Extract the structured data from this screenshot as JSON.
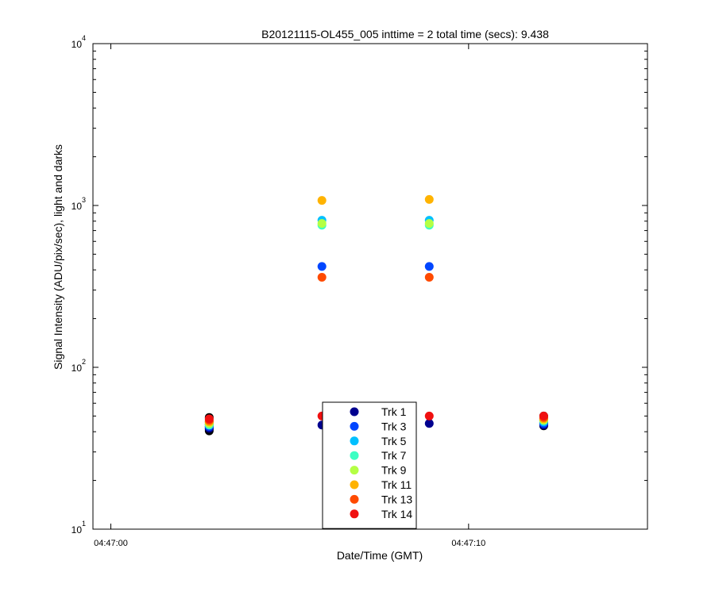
{
  "chart_data": {
    "type": "scatter",
    "title": "B20121115-OL455_005 inttime = 2 total time (secs): 9.438",
    "xlabel": "Date/Time (GMT)",
    "ylabel": "Signal Intensity (ADU/pix/sec), light and darks",
    "y_scale": "log",
    "ylim": [
      10,
      10000
    ],
    "xlim": [
      "04:46:59.5",
      "04:47:15"
    ],
    "x_ticks": [
      {
        "value": "04:47:00",
        "label": "04:47:00"
      },
      {
        "value": "04:47:10",
        "label": "04:47:10"
      }
    ],
    "y_ticks": [
      {
        "value": 10,
        "base": "10",
        "exp": "1"
      },
      {
        "value": 100,
        "base": "10",
        "exp": "2"
      },
      {
        "value": 1000,
        "base": "10",
        "exp": "3"
      },
      {
        "value": 10000,
        "base": "10",
        "exp": "4"
      }
    ],
    "grid": false,
    "legend_position": "bottom-center",
    "series": [
      {
        "name": "Trk 1",
        "color": "#00008f",
        "points": [
          {
            "x": "04:47:02.75",
            "y": 42
          },
          {
            "x": "04:47:05.9",
            "y": 44
          },
          {
            "x": "04:47:08.9",
            "y": 45
          },
          {
            "x": "04:47:12.1",
            "y": 44
          }
        ]
      },
      {
        "name": "Trk 3",
        "color": "#0046ff",
        "points": [
          {
            "x": "04:47:02.75",
            "y": 43
          },
          {
            "x": "04:47:05.9",
            "y": 420
          },
          {
            "x": "04:47:08.9",
            "y": 420
          },
          {
            "x": "04:47:12.1",
            "y": 45
          }
        ]
      },
      {
        "name": "Trk 5",
        "color": "#00c0ff",
        "points": [
          {
            "x": "04:47:02.75",
            "y": 44
          },
          {
            "x": "04:47:05.9",
            "y": 810
          },
          {
            "x": "04:47:08.9",
            "y": 810
          },
          {
            "x": "04:47:12.1",
            "y": 46
          }
        ]
      },
      {
        "name": "Trk 7",
        "color": "#3cffc3",
        "points": [
          {
            "x": "04:47:02.75",
            "y": 44
          },
          {
            "x": "04:47:05.9",
            "y": 755
          },
          {
            "x": "04:47:08.9",
            "y": 755
          },
          {
            "x": "04:47:12.1",
            "y": 47
          }
        ]
      },
      {
        "name": "Trk 9",
        "color": "#b4ff44",
        "points": [
          {
            "x": "04:47:02.75",
            "y": 45
          },
          {
            "x": "04:47:05.9",
            "y": 775
          },
          {
            "x": "04:47:08.9",
            "y": 775
          },
          {
            "x": "04:47:12.1",
            "y": 47
          }
        ]
      },
      {
        "name": "Trk 11",
        "color": "#ffb300",
        "points": [
          {
            "x": "04:47:02.75",
            "y": 46
          },
          {
            "x": "04:47:05.9",
            "y": 1075
          },
          {
            "x": "04:47:08.9",
            "y": 1090
          },
          {
            "x": "04:47:12.1",
            "y": 48
          }
        ]
      },
      {
        "name": "Trk 13",
        "color": "#ff4a00",
        "points": [
          {
            "x": "04:47:02.75",
            "y": 47
          },
          {
            "x": "04:47:05.9",
            "y": 360
          },
          {
            "x": "04:47:08.9",
            "y": 360
          },
          {
            "x": "04:47:12.1",
            "y": 49
          }
        ]
      },
      {
        "name": "Trk 14",
        "color": "#f01010",
        "points": [
          {
            "x": "04:47:02.75",
            "y": 48
          },
          {
            "x": "04:47:05.9",
            "y": 50
          },
          {
            "x": "04:47:08.9",
            "y": 50
          },
          {
            "x": "04:47:12.1",
            "y": 50
          }
        ]
      },
      {
        "name": "",
        "color": "#000000",
        "points": [
          {
            "x": "04:47:02.75",
            "y": 40.5
          },
          {
            "x": "04:47:02.75",
            "y": 41.5
          },
          {
            "x": "04:47:02.75",
            "y": 43
          },
          {
            "x": "04:47:02.75",
            "y": 44.5
          },
          {
            "x": "04:47:02.75",
            "y": 46
          },
          {
            "x": "04:47:02.75",
            "y": 49
          },
          {
            "x": "04:47:12.1",
            "y": 43.5
          },
          {
            "x": "04:47:12.1",
            "y": 44.5
          },
          {
            "x": "04:47:12.1",
            "y": 45.5
          },
          {
            "x": "04:47:12.1",
            "y": 47
          },
          {
            "x": "04:47:12.1",
            "y": 48.5
          },
          {
            "x": "04:47:12.1",
            "y": 50
          }
        ]
      }
    ]
  }
}
